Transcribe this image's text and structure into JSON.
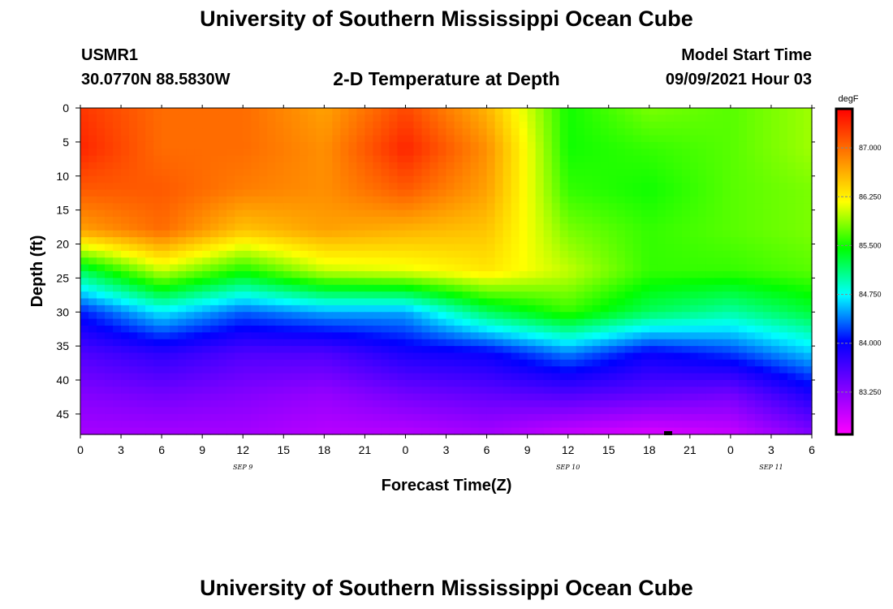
{
  "header": {
    "title": "University of Southern Mississippi Ocean Cube",
    "station": "USMR1",
    "coords": "30.0770N  88.5830W",
    "plot_title": "2-D Temperature at Depth",
    "model_label": "Model Start Time",
    "model_time": "09/09/2021 Hour 03"
  },
  "footer": {
    "title": "University of Southern Mississippi Ocean Cube"
  },
  "chart_data": {
    "type": "heatmap",
    "title": "2-D Temperature at Depth",
    "xlabel": "Forecast Time(Z)",
    "ylabel": "Depth (ft)",
    "x_ticks": [
      "0",
      "3",
      "6",
      "9",
      "12",
      "15",
      "18",
      "21",
      "0",
      "3",
      "6",
      "9",
      "12",
      "15",
      "18",
      "21",
      "0",
      "3",
      "6"
    ],
    "x_range_hours": [
      0,
      54
    ],
    "date_labels": [
      {
        "label": "SEP 9",
        "hour": 12
      },
      {
        "label": "SEP 10",
        "hour": 36
      },
      {
        "label": "SEP 11",
        "hour": 51
      }
    ],
    "y_ticks": [
      "0",
      "5",
      "10",
      "15",
      "20",
      "25",
      "30",
      "35",
      "40",
      "45"
    ],
    "y_range_ft": [
      0,
      48
    ],
    "colorbar": {
      "unit": "degF",
      "range": [
        82.6,
        87.6
      ],
      "ticks": [
        "87.000",
        "86.250",
        "85.500",
        "84.750",
        "84.000",
        "83.250"
      ],
      "tick_values": [
        87.0,
        86.25,
        85.5,
        84.75,
        84.0,
        83.25
      ],
      "colors": [
        "#ff00ff",
        "#8000ff",
        "#0000ff",
        "#00ffff",
        "#00ff00",
        "#ffff00",
        "#ff8000",
        "#ff0000"
      ]
    },
    "grid_hours": [
      0,
      6,
      12,
      18,
      24,
      30,
      36,
      42,
      48,
      54
    ],
    "grid_depths_ft": [
      0,
      6,
      12,
      18,
      24,
      30,
      36,
      42,
      48
    ],
    "temperature_degF": [
      [
        87.3,
        87.0,
        87.0,
        86.7,
        87.2,
        86.6,
        85.5,
        85.8,
        85.7,
        85.9
      ],
      [
        87.4,
        87.0,
        87.0,
        86.8,
        87.4,
        86.8,
        85.5,
        85.6,
        85.7,
        85.9
      ],
      [
        87.1,
        87.1,
        86.9,
        86.8,
        87.1,
        86.7,
        85.6,
        85.5,
        85.7,
        85.8
      ],
      [
        86.7,
        87.0,
        86.5,
        86.7,
        86.6,
        86.5,
        85.8,
        85.6,
        85.7,
        85.8
      ],
      [
        85.2,
        86.0,
        85.5,
        86.0,
        86.1,
        86.3,
        86.0,
        85.6,
        85.6,
        85.7
      ],
      [
        84.1,
        84.7,
        84.3,
        84.5,
        84.5,
        85.2,
        85.6,
        85.2,
        85.0,
        85.3
      ],
      [
        83.6,
        83.8,
        83.6,
        83.6,
        83.9,
        84.0,
        84.4,
        84.0,
        84.2,
        84.6
      ],
      [
        83.3,
        83.4,
        83.3,
        83.2,
        83.4,
        83.5,
        83.6,
        83.5,
        83.4,
        83.9
      ],
      [
        83.1,
        83.1,
        83.1,
        83.0,
        83.0,
        83.1,
        82.9,
        82.8,
        82.9,
        83.3
      ]
    ]
  }
}
